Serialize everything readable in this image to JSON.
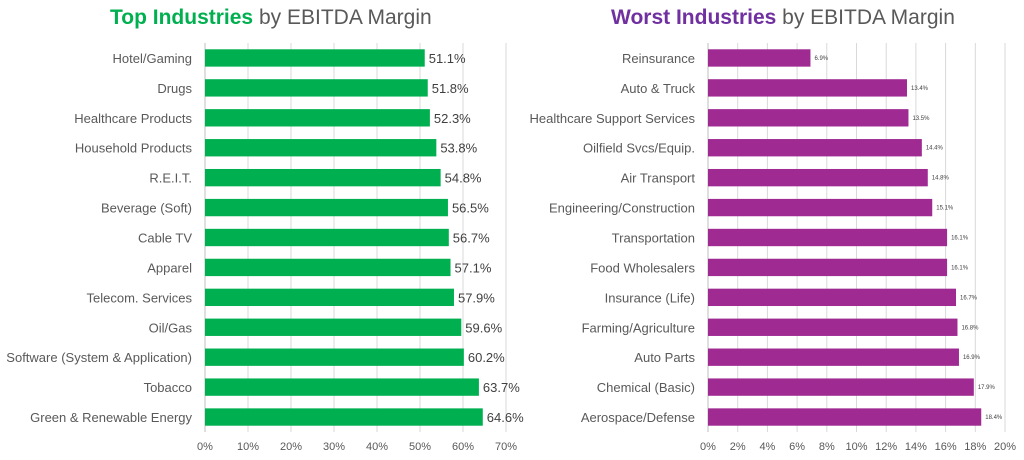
{
  "chart_data": [
    {
      "type": "bar",
      "orientation": "horizontal",
      "title_highlight": "Top Industries",
      "title_rest": " by EBITDA Margin",
      "color": "#00b050",
      "title_color": "#00b050",
      "categories": [
        "Hotel/Gaming",
        "Drugs",
        "Healthcare Products",
        "Household Products",
        "R.E.I.T.",
        "Beverage (Soft)",
        "Cable TV",
        "Apparel",
        "Telecom. Services",
        "Oil/Gas",
        "Software (System & Application)",
        "Tobacco",
        "Green & Renewable Energy"
      ],
      "values": [
        51.1,
        51.8,
        52.3,
        53.8,
        54.8,
        56.5,
        56.7,
        57.1,
        57.9,
        59.6,
        60.2,
        63.7,
        64.6
      ],
      "labels": [
        "51.1%",
        "51.8%",
        "52.3%",
        "53.8%",
        "54.8%",
        "56.5%",
        "56.7%",
        "57.1%",
        "57.9%",
        "59.6%",
        "60.2%",
        "63.7%",
        "64.6%"
      ],
      "xlim": [
        0,
        70
      ],
      "ticks": [
        "0%",
        "10%",
        "20%",
        "30%",
        "40%",
        "50%",
        "60%",
        "70%"
      ],
      "grid": true,
      "xlabel": "",
      "ylabel": ""
    },
    {
      "type": "bar",
      "orientation": "horizontal",
      "title_highlight": "Worst Industries",
      "title_rest": " by EBITDA Margin",
      "color": "#9e2a92",
      "title_color": "#7030a0",
      "categories": [
        "Reinsurance",
        "Auto & Truck",
        "Healthcare Support Services",
        "Oilfield Svcs/Equip.",
        "Air Transport",
        "Engineering/Construction",
        "Transportation",
        "Food Wholesalers",
        "Insurance (Life)",
        "Farming/Agriculture",
        "Auto Parts",
        "Chemical (Basic)",
        "Aerospace/Defense"
      ],
      "values": [
        6.9,
        13.4,
        13.5,
        14.4,
        14.8,
        15.1,
        16.1,
        16.1,
        16.7,
        16.8,
        16.9,
        17.9,
        18.4
      ],
      "labels": [
        "6.9%",
        "13.4%",
        "13.5%",
        "14.4%",
        "14.8%",
        "15.1%",
        "16.1%",
        "16.1%",
        "16.7%",
        "16.8%",
        "16.9%",
        "17.9%",
        "18.4%"
      ],
      "xlim": [
        0,
        20
      ],
      "ticks": [
        "0%",
        "2%",
        "4%",
        "6%",
        "8%",
        "10%",
        "12%",
        "14%",
        "16%",
        "18%",
        "20%"
      ],
      "grid": true,
      "xlabel": "",
      "ylabel": ""
    }
  ]
}
